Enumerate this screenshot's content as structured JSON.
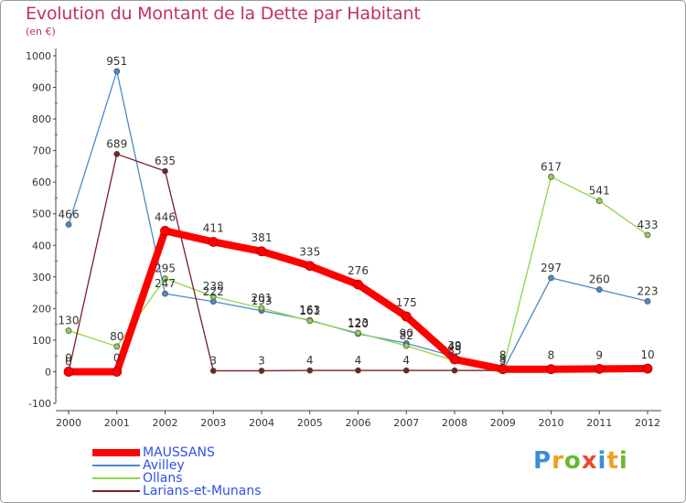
{
  "header": {
    "title": "Evolution du Montant de la Dette par Habitant",
    "unit": "(en €)"
  },
  "chart_data": {
    "type": "line",
    "title": "Evolution du Montant de la Dette par Habitant",
    "ylabel": "(en €)",
    "xlabel": "",
    "ylim": [
      -100,
      1000
    ],
    "y_ticks": [
      -100,
      0,
      100,
      200,
      300,
      400,
      500,
      600,
      700,
      800,
      900,
      1000
    ],
    "x": [
      2000,
      2001,
      2002,
      2003,
      2004,
      2005,
      2006,
      2007,
      2008,
      2009,
      2010,
      2011,
      2012
    ],
    "grid": false,
    "legend_position": "bottom-left",
    "series": [
      {
        "name": "Avilley",
        "color": "#4a8ac8",
        "values": [
          466,
          951,
          247,
          222,
          193,
          163,
          120,
          90,
          48,
          3,
          297,
          260,
          223
        ],
        "labels": [
          "466",
          "951",
          "247",
          "222",
          "193",
          "163",
          "120",
          "90",
          "48",
          "3",
          "297",
          "260",
          "223"
        ]
      },
      {
        "name": "Ollans",
        "color": "#8ed64a",
        "values": [
          130,
          80,
          295,
          238,
          201,
          161,
          123,
          82,
          35,
          8,
          617,
          541,
          433
        ],
        "labels": [
          "130",
          "80",
          "295",
          "238",
          "201",
          "161",
          "123",
          "82",
          "35",
          "8",
          "617",
          "541",
          "433"
        ]
      },
      {
        "name": "Larians-et-Munans",
        "color": "#7a1e22",
        "values": [
          0,
          689,
          635,
          3,
          3,
          4,
          4,
          4,
          4,
          4,
          4,
          4,
          4
        ],
        "labels": [
          "0",
          "689",
          "635",
          "3",
          "3",
          "4",
          "4",
          "4",
          "",
          "",
          "",
          "",
          ""
        ]
      },
      {
        "name": "MAUSSANS",
        "color": "#ff0000",
        "values": [
          0,
          0,
          446,
          411,
          381,
          335,
          276,
          175,
          39,
          8,
          8,
          9,
          10
        ],
        "labels": [
          "0",
          "0",
          "446",
          "411",
          "381",
          "335",
          "276",
          "175",
          "39",
          "8",
          "8",
          "9",
          "10"
        ]
      }
    ]
  },
  "legend": {
    "items": [
      {
        "label": "MAUSSANS",
        "color": "#ff0000"
      },
      {
        "label": "Avilley",
        "color": "#4a8ac8"
      },
      {
        "label": "Ollans",
        "color": "#8ed64a"
      },
      {
        "label": "Larians-et-Munans",
        "color": "#7a1e22"
      }
    ]
  },
  "brand": {
    "text": "Proxiti",
    "letters": [
      {
        "char": "P",
        "color": "#3a8fd8"
      },
      {
        "char": "r",
        "color": "#f0a020"
      },
      {
        "char": "o",
        "color": "#6ab830"
      },
      {
        "char": "x",
        "color": "#e84a2a"
      },
      {
        "char": "i",
        "color": "#3a8fd8"
      },
      {
        "char": "t",
        "color": "#f0a020"
      },
      {
        "char": "i",
        "color": "#6ab830"
      }
    ]
  }
}
